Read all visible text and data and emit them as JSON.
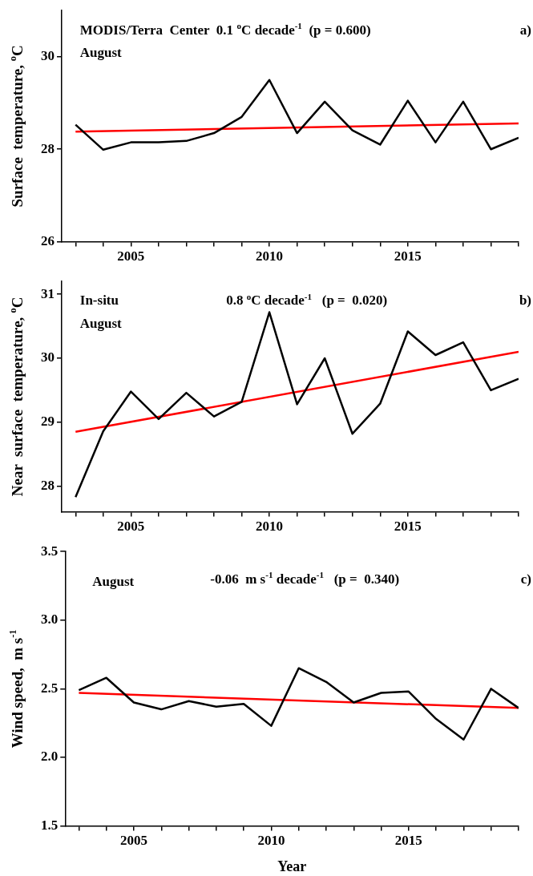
{
  "chart_data": [
    {
      "type": "line",
      "ylabel": "Surface  temperature, $^{o}$C",
      "xlim": [
        2002.5,
        2019
      ],
      "ylim": [
        26,
        31
      ],
      "xticks": [
        {
          "value": 2003,
          "label": null
        },
        {
          "value": 2004,
          "label": null
        },
        2005,
        {
          "value": 2006,
          "label": null
        },
        {
          "value": 2007,
          "label": null
        },
        {
          "value": 2008,
          "label": null
        },
        {
          "value": 2009,
          "label": null
        },
        2010,
        {
          "value": 2011,
          "label": null
        },
        {
          "value": 2012,
          "label": null
        },
        {
          "value": 2013,
          "label": null
        },
        {
          "value": 2014,
          "label": null
        },
        2015,
        {
          "value": 2016,
          "label": null
        },
        {
          "value": 2017,
          "label": null
        },
        {
          "value": 2018,
          "label": null
        },
        {
          "value": 2019,
          "label": null
        }
      ],
      "yticks": [
        26,
        28,
        30
      ],
      "annotations": [
        "MODIS/Terra  Center  0.1 $^{o}$C decade$^{-1}$  (p = 0.600)",
        "August",
        "a)"
      ],
      "series": [
        {
          "color": "#000000",
          "x": [
            2003,
            2004,
            2005,
            2006,
            2007,
            2008,
            2009,
            2010,
            2011,
            2012,
            2013,
            2014,
            2015,
            2016,
            2017,
            2018,
            2019
          ],
          "values": [
            28.53,
            27.99,
            28.15,
            28.15,
            28.18,
            28.35,
            28.7,
            29.5,
            28.35,
            29.03,
            28.41,
            28.1,
            29.05,
            28.15,
            29.03,
            28.0,
            28.25
          ]
        },
        {
          "color": "#ff0000",
          "x": [
            2003,
            2019
          ],
          "values": [
            28.38,
            28.56
          ]
        }
      ],
      "grid": false,
      "legend": false,
      "marker": "none"
    },
    {
      "type": "line",
      "ylabel": "Near  surface  temperature, $^{o}$C",
      "xlim": [
        2002.5,
        2019
      ],
      "ylim": [
        27.6,
        31.2
      ],
      "xticks": [
        {
          "value": 2003,
          "label": null
        },
        {
          "value": 2004,
          "label": null
        },
        2005,
        {
          "value": 2006,
          "label": null
        },
        {
          "value": 2007,
          "label": null
        },
        {
          "value": 2008,
          "label": null
        },
        {
          "value": 2009,
          "label": null
        },
        2010,
        {
          "value": 2011,
          "label": null
        },
        {
          "value": 2012,
          "label": null
        },
        {
          "value": 2013,
          "label": null
        },
        {
          "value": 2014,
          "label": null
        },
        2015,
        {
          "value": 2016,
          "label": null
        },
        {
          "value": 2017,
          "label": null
        },
        {
          "value": 2018,
          "label": null
        },
        {
          "value": 2019,
          "label": null
        }
      ],
      "yticks": [
        28,
        29,
        30,
        31
      ],
      "annotations": [
        "In-situ",
        "August",
        "0.8 $^{o}$C decade$^{-1}$   (p =  0.020)",
        "b)"
      ],
      "series": [
        {
          "color": "#000000",
          "x": [
            2003,
            2004,
            2005,
            2006,
            2007,
            2008,
            2009,
            2010,
            2011,
            2012,
            2013,
            2014,
            2015,
            2016,
            2017,
            2018,
            2019
          ],
          "values": [
            27.83,
            28.86,
            29.48,
            29.05,
            29.46,
            29.09,
            29.32,
            30.72,
            29.28,
            30.0,
            28.82,
            29.29,
            30.42,
            30.05,
            30.25,
            29.5,
            29.68
          ]
        },
        {
          "color": "#ff0000",
          "x": [
            2003,
            2019
          ],
          "values": [
            28.85,
            30.1
          ]
        }
      ],
      "grid": false,
      "legend": false,
      "marker": "none"
    },
    {
      "type": "line",
      "xlabel": "Year",
      "ylabel": "Wind speed,  m s$^{-1}$",
      "xlim": [
        2002.5,
        2019
      ],
      "ylim": [
        1.5,
        3.5
      ],
      "xticks": [
        {
          "value": 2003,
          "label": null
        },
        {
          "value": 2004,
          "label": null
        },
        2005,
        {
          "value": 2006,
          "label": null
        },
        {
          "value": 2007,
          "label": null
        },
        {
          "value": 2008,
          "label": null
        },
        {
          "value": 2009,
          "label": null
        },
        2010,
        {
          "value": 2011,
          "label": null
        },
        {
          "value": 2012,
          "label": null
        },
        {
          "value": 2013,
          "label": null
        },
        {
          "value": 2014,
          "label": null
        },
        2015,
        {
          "value": 2016,
          "label": null
        },
        {
          "value": 2017,
          "label": null
        },
        {
          "value": 2018,
          "label": null
        },
        {
          "value": 2019,
          "label": null
        }
      ],
      "yticks": [
        1.5,
        {
          "value": 2,
          "label": "2.0"
        },
        2.5,
        {
          "value": 3,
          "label": "3.0"
        },
        3.5
      ],
      "annotations": [
        "August",
        "-0.06  m s$^{-1}$ decade$^{-1}$   (p =  0.340)",
        "c)"
      ],
      "series": [
        {
          "color": "#000000",
          "x": [
            2003,
            2004,
            2005,
            2006,
            2007,
            2008,
            2009,
            2010,
            2011,
            2012,
            2013,
            2014,
            2015,
            2016,
            2017,
            2018,
            2019
          ],
          "values": [
            2.49,
            2.58,
            2.4,
            2.35,
            2.41,
            2.37,
            2.39,
            2.23,
            2.65,
            2.55,
            2.4,
            2.47,
            2.48,
            2.28,
            2.13,
            2.5,
            2.36
          ]
        },
        {
          "color": "#ff0000",
          "x": [
            2003,
            2019
          ],
          "values": [
            2.47,
            2.36
          ]
        }
      ],
      "grid": false,
      "legend": false,
      "marker": "none"
    }
  ]
}
